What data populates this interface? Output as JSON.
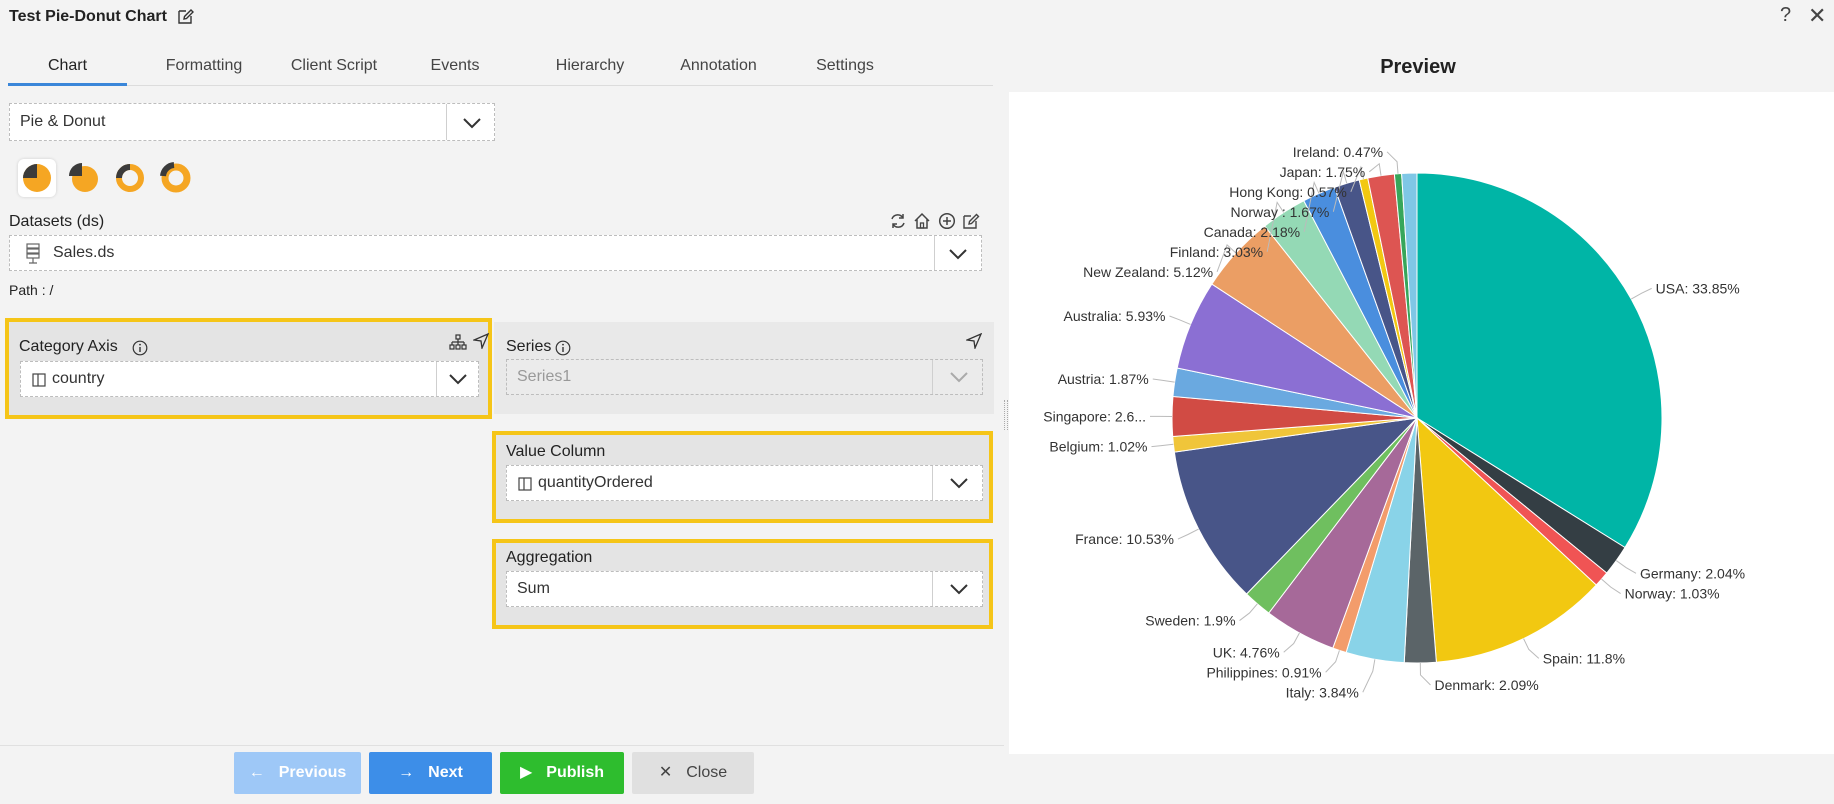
{
  "app": {
    "title": "Test Pie-Donut Chart",
    "help_glyph": "?",
    "close_glyph": "✕"
  },
  "tabs": [
    {
      "label": "Chart",
      "active": true
    },
    {
      "label": "Formatting"
    },
    {
      "label": "Client Script"
    },
    {
      "label": "Events"
    },
    {
      "label": "Hierarchy"
    },
    {
      "label": "Annotation"
    },
    {
      "label": "Settings"
    }
  ],
  "chart_type": {
    "value": "Pie & Donut"
  },
  "chart_variants": [
    {
      "icon": "pie-icon",
      "active": true
    },
    {
      "icon": "pie-exploded-icon"
    },
    {
      "icon": "donut-icon"
    },
    {
      "icon": "donut-thick-icon"
    }
  ],
  "datasets": {
    "label": "Datasets (ds)",
    "value": "Sales.ds",
    "path_label": "Path : /"
  },
  "category_axis": {
    "label": "Category Axis",
    "value": "country"
  },
  "series": {
    "label": "Series",
    "placeholder": "Series1"
  },
  "value_column": {
    "label": "Value Column",
    "value": "quantityOrdered"
  },
  "aggregation": {
    "label": "Aggregation",
    "value": "Sum"
  },
  "buttons": {
    "previous": "Previous",
    "next": "Next",
    "publish": "Publish",
    "close": "Close"
  },
  "preview": {
    "title": "Preview"
  },
  "colors": {
    "accent": "#3d8ee8",
    "highlight": "#f5c518",
    "publish": "#2ebd2e",
    "icon_orange": "#f5a623"
  },
  "chart_data": {
    "type": "pie",
    "title": "",
    "slices": [
      {
        "label": "USA: 33.85%",
        "value": 33.85,
        "color": "#00b5a6"
      },
      {
        "label": "Germany: 2.04%",
        "value": 2.04,
        "color": "#343e44"
      },
      {
        "label": "Norway: 1.03%",
        "value": 1.03,
        "color": "#f05454"
      },
      {
        "label": "Spain: 11.8%",
        "value": 11.8,
        "color": "#f2c811"
      },
      {
        "label": "Denmark: 2.09%",
        "value": 2.09,
        "color": "#5b6468"
      },
      {
        "label": "Italy: 3.84%",
        "value": 3.84,
        "color": "#89d3e8"
      },
      {
        "label": "Philippines: 0.91%",
        "value": 0.91,
        "color": "#f39c6b"
      },
      {
        "label": "UK: 4.76%",
        "value": 4.76,
        "color": "#a66999"
      },
      {
        "label": "Sweden: 1.9%",
        "value": 1.9,
        "color": "#6fbf5f"
      },
      {
        "label": "France: 10.53%",
        "value": 10.53,
        "color": "#485588"
      },
      {
        "label": "Belgium: 1.02%",
        "value": 1.02,
        "color": "#f0c53a"
      },
      {
        "label": "Singapore: 2.6...",
        "value": 2.6,
        "color": "#d14b44"
      },
      {
        "label": "Austria: 1.87%",
        "value": 1.87,
        "color": "#6aa9e0"
      },
      {
        "label": "Australia: 5.93%",
        "value": 5.93,
        "color": "#8b6fd3"
      },
      {
        "label": "New Zealand: 5.12%",
        "value": 5.12,
        "color": "#eb9e64"
      },
      {
        "label": "Finland: 3.03%",
        "value": 3.03,
        "color": "#94d9b5"
      },
      {
        "label": "Canada: 2.18%",
        "value": 2.18,
        "color": "#4a8ede"
      },
      {
        "label": "Norway : 1.67%",
        "value": 1.67,
        "color": "#485588"
      },
      {
        "label": "Hong Kong: 0.57%",
        "value": 0.57,
        "color": "#f2c811"
      },
      {
        "label": "Japan: 1.75%",
        "value": 1.75,
        "color": "#dd5552"
      },
      {
        "label": "Ireland: 0.47%",
        "value": 0.47,
        "color": "#37a65a"
      },
      {
        "label": "",
        "value": 1.0,
        "color": "#7fc7e6"
      }
    ]
  }
}
